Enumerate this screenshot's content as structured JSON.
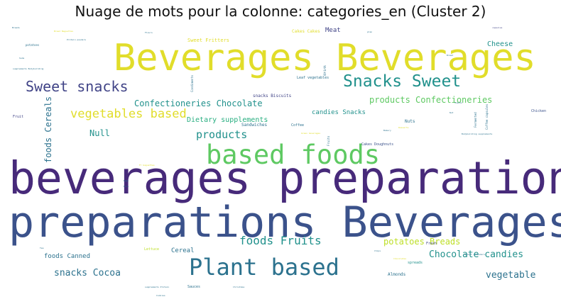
{
  "title": "Nuage de mots pour la colonne: categories_en (Cluster 2)",
  "colors": {
    "dark_purple": "#472a7a",
    "indigo": "#3b528b",
    "slate": "#414487",
    "teal": "#2c728e",
    "teal_blue": "#21918c",
    "green": "#28ae80",
    "light_green": "#5ec962",
    "lime": "#addc30",
    "yellow": "#e1dd2a",
    "yellow_green": "#bddf26"
  },
  "chart_data": {
    "type": "wordcloud",
    "title": "Nuage de mots pour la colonne: categories_en (Cluster 2)",
    "words": [
      {
        "text": "beverages preparations",
        "weight": 1.0,
        "color": "dark_purple"
      },
      {
        "text": "preparations Beverages",
        "weight": 0.93,
        "color": "indigo"
      },
      {
        "text": "Beverages Beverages",
        "weight": 0.86,
        "color": "yellow"
      },
      {
        "text": "based foods",
        "weight": 0.55,
        "color": "light_green"
      },
      {
        "text": "Plant based",
        "weight": 0.48,
        "color": "teal"
      },
      {
        "text": "Snacks Sweet",
        "weight": 0.36,
        "color": "teal_blue"
      },
      {
        "text": "Sweet snacks",
        "weight": 0.33,
        "color": "slate"
      },
      {
        "text": "vegetables based",
        "weight": 0.28,
        "color": "yellow"
      },
      {
        "text": "foods Fruits",
        "weight": 0.25,
        "color": "teal_blue"
      },
      {
        "text": "Confectioneries Chocolate",
        "weight": 0.19,
        "color": "teal_blue"
      },
      {
        "text": "products Confectioneries",
        "weight": 0.19,
        "color": "light_green"
      },
      {
        "text": "products",
        "weight": 0.21,
        "color": "teal_blue"
      },
      {
        "text": "foods Cereals",
        "weight": 0.17,
        "color": "teal"
      },
      {
        "text": "Chocolate candies",
        "weight": 0.19,
        "color": "teal_blue"
      },
      {
        "text": "potatoes Breads",
        "weight": 0.17,
        "color": "yellow_green"
      },
      {
        "text": "snacks Cocoa",
        "weight": 0.18,
        "color": "teal"
      },
      {
        "text": "vegetable",
        "weight": 0.18,
        "color": "teal"
      },
      {
        "text": "Null",
        "weight": 0.15,
        "color": "teal_blue"
      },
      {
        "text": "Dietary supplements",
        "weight": 0.12,
        "color": "green"
      },
      {
        "text": "Cheese",
        "weight": 0.12,
        "color": "teal_blue"
      },
      {
        "text": "candies Snacks",
        "weight": 0.11,
        "color": "teal_blue"
      },
      {
        "text": "Cereal",
        "weight": 0.11,
        "color": "teal"
      },
      {
        "text": "foods Canned",
        "weight": 0.11,
        "color": "teal"
      },
      {
        "text": "Meat",
        "weight": 0.1,
        "color": "slate"
      },
      {
        "text": "Sweet Fritters",
        "weight": 0.08,
        "color": "yellow"
      },
      {
        "text": "snacks Biscuits",
        "weight": 0.07,
        "color": "slate"
      },
      {
        "text": "Sandwiches",
        "weight": 0.07,
        "color": "teal"
      },
      {
        "text": "Coffee",
        "weight": 0.06,
        "color": "teal"
      },
      {
        "text": "Nuts",
        "weight": 0.07,
        "color": "teal"
      },
      {
        "text": "Almonds",
        "weight": 0.07,
        "color": "teal"
      },
      {
        "text": "spreads",
        "weight": 0.06,
        "color": "teal_blue"
      },
      {
        "text": "Cakes Doughnuts",
        "weight": 0.06,
        "color": "indigo"
      },
      {
        "text": "Leaf vegetables",
        "weight": 0.06,
        "color": "teal"
      },
      {
        "text": "Lettuce",
        "weight": 0.05,
        "color": "yellow_green"
      },
      {
        "text": "Sauces",
        "weight": 0.05,
        "color": "teal"
      },
      {
        "text": "Fruit",
        "weight": 0.05,
        "color": "slate"
      },
      {
        "text": "Chicken",
        "weight": 0.05,
        "color": "indigo"
      },
      {
        "text": "Fresh",
        "weight": 0.05,
        "color": "slate"
      },
      {
        "text": "drink",
        "weight": 0.05,
        "color": "teal"
      },
      {
        "text": "Cakes Cakes",
        "weight": 0.06,
        "color": "yellow"
      },
      {
        "text": "Fruits",
        "weight": 0.04,
        "color": "teal"
      },
      {
        "text": "Condiments",
        "weight": 0.04,
        "color": "teal"
      },
      {
        "text": "Fermented",
        "weight": 0.04,
        "color": "teal"
      },
      {
        "text": "Coffee capsules",
        "weight": 0.04,
        "color": "teal"
      },
      {
        "text": "Bodybuilding supplements",
        "weight": 0.03,
        "color": "teal"
      },
      {
        "text": "supplements Bodybuilding",
        "weight": 0.03,
        "color": "teal"
      },
      {
        "text": "Protein powders",
        "weight": 0.03,
        "color": "teal"
      },
      {
        "text": "Bread Baguettes",
        "weight": 0.03,
        "color": "yellow"
      },
      {
        "text": "potatoes",
        "weight": 0.04,
        "color": "teal"
      },
      {
        "text": "Flours",
        "weight": 0.03,
        "color": "teal"
      },
      {
        "text": "Nut",
        "weight": 0.03,
        "color": "teal"
      },
      {
        "text": "Breads",
        "weight": 0.03,
        "color": "teal"
      },
      {
        "text": "capsules",
        "weight": 0.03,
        "color": "slate"
      },
      {
        "text": "Bread",
        "weight": 0.03,
        "color": "teal"
      },
      {
        "text": "Eggs",
        "weight": 0.03,
        "color": "teal"
      },
      {
        "text": "Green beverages",
        "weight": 0.03,
        "color": "yellow"
      },
      {
        "text": "Desserts",
        "weight": 0.03,
        "color": "yellow"
      },
      {
        "text": "Advent calendars",
        "weight": 0.03,
        "color": "teal"
      },
      {
        "text": "Chocolates",
        "weight": 0.03,
        "color": "yellow"
      },
      {
        "text": "supplements Protein",
        "weight": 0.03,
        "color": "teal"
      },
      {
        "text": "Christmas",
        "weight": 0.03,
        "color": "teal"
      },
      {
        "text": "Fr baguettes",
        "weight": 0.03,
        "color": "yellow"
      },
      {
        "text": "Soups",
        "weight": 0.03,
        "color": "teal"
      },
      {
        "text": "Tea",
        "weight": 0.03,
        "color": "teal"
      },
      {
        "text": "Rice",
        "weight": 0.03,
        "color": "teal"
      },
      {
        "text": "Chips",
        "weight": 0.03,
        "color": "teal"
      },
      {
        "text": "Bakery",
        "weight": 0.03,
        "color": "teal"
      },
      {
        "text": "Soda",
        "weight": 0.03,
        "color": "teal"
      },
      {
        "text": "plan",
        "weight": 0.03,
        "color": "teal"
      },
      {
        "text": "Snacks",
        "weight": 0.03,
        "color": "teal"
      },
      {
        "text": "Cookies",
        "weight": 0.03,
        "color": "teal"
      }
    ]
  }
}
